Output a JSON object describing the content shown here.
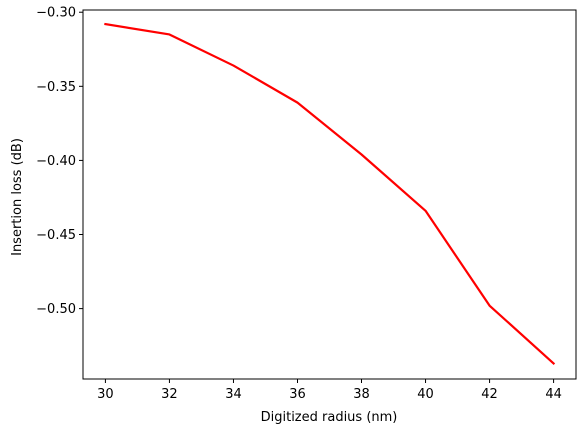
{
  "chart_data": {
    "type": "line",
    "title": "",
    "xlabel": "Digitized radius (nm)",
    "ylabel": "Insertion loss (dB)",
    "xlim": [
      29.3,
      44.7
    ],
    "ylim": [
      -0.5475,
      -0.2985
    ],
    "grid": false,
    "legend": "none",
    "x_ticks": [
      30,
      32,
      34,
      36,
      38,
      40,
      42,
      44
    ],
    "x_tick_labels": [
      "30",
      "32",
      "34",
      "36",
      "38",
      "40",
      "42",
      "44"
    ],
    "y_ticks": [
      -0.3,
      -0.35,
      -0.4,
      -0.45,
      -0.5
    ],
    "y_tick_labels": [
      "−0.30",
      "−0.35",
      "−0.40",
      "−0.45",
      "−0.50"
    ],
    "series": [
      {
        "color": "#ff0000",
        "x": [
          30,
          32,
          34,
          36,
          38,
          40,
          42,
          44
        ],
        "y": [
          -0.308,
          -0.315,
          -0.336,
          -0.361,
          -0.396,
          -0.434,
          -0.498,
          -0.537
        ]
      }
    ]
  }
}
